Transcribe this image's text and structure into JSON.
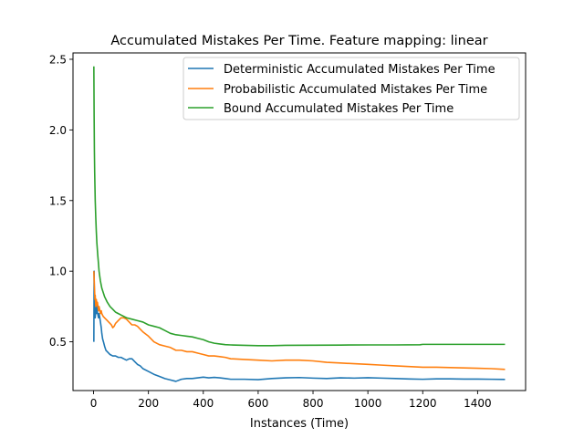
{
  "chart_data": {
    "type": "line",
    "title": "Accumulated Mistakes Per Time. Feature mapping: linear",
    "xlabel": "Instances (Time)",
    "ylabel": "",
    "xlim": [
      -75,
      1575
    ],
    "ylim": [
      0.155,
      2.545
    ],
    "xticks": [
      0,
      200,
      400,
      600,
      800,
      1000,
      1200,
      1400
    ],
    "xtick_labels": [
      "0",
      "200",
      "400",
      "600",
      "800",
      "1000",
      "1200",
      "1400"
    ],
    "yticks": [
      0.5,
      1.0,
      1.5,
      2.0,
      2.5
    ],
    "ytick_labels": [
      "0.5",
      "1.0",
      "1.5",
      "2.0",
      "2.5"
    ],
    "grid": false,
    "legend_position": "top-right",
    "series": [
      {
        "name": "Deterministic Accumulated Mistakes Per Time",
        "color": "#1f77b4",
        "points": [
          [
            1,
            0.5
          ],
          [
            2,
            1.0
          ],
          [
            3,
            0.67
          ],
          [
            4,
            0.75
          ],
          [
            5,
            0.8
          ],
          [
            6,
            0.67
          ],
          [
            8,
            0.75
          ],
          [
            10,
            0.7
          ],
          [
            12,
            0.75
          ],
          [
            14,
            0.71
          ],
          [
            16,
            0.69
          ],
          [
            18,
            0.67
          ],
          [
            20,
            0.7
          ],
          [
            22,
            0.68
          ],
          [
            25,
            0.64
          ],
          [
            28,
            0.6
          ],
          [
            30,
            0.56
          ],
          [
            33,
            0.52
          ],
          [
            36,
            0.5
          ],
          [
            40,
            0.47
          ],
          [
            45,
            0.44
          ],
          [
            50,
            0.43
          ],
          [
            60,
            0.41
          ],
          [
            70,
            0.4
          ],
          [
            80,
            0.4
          ],
          [
            90,
            0.39
          ],
          [
            100,
            0.39
          ],
          [
            110,
            0.38
          ],
          [
            120,
            0.37
          ],
          [
            130,
            0.38
          ],
          [
            140,
            0.38
          ],
          [
            150,
            0.36
          ],
          [
            160,
            0.34
          ],
          [
            170,
            0.33
          ],
          [
            180,
            0.31
          ],
          [
            200,
            0.29
          ],
          [
            220,
            0.27
          ],
          [
            240,
            0.255
          ],
          [
            260,
            0.24
          ],
          [
            280,
            0.23
          ],
          [
            300,
            0.22
          ],
          [
            320,
            0.235
          ],
          [
            340,
            0.24
          ],
          [
            360,
            0.24
          ],
          [
            380,
            0.245
          ],
          [
            400,
            0.25
          ],
          [
            420,
            0.245
          ],
          [
            440,
            0.248
          ],
          [
            460,
            0.245
          ],
          [
            480,
            0.24
          ],
          [
            500,
            0.235
          ],
          [
            550,
            0.235
          ],
          [
            600,
            0.232
          ],
          [
            650,
            0.24
          ],
          [
            700,
            0.245
          ],
          [
            750,
            0.247
          ],
          [
            800,
            0.243
          ],
          [
            850,
            0.24
          ],
          [
            900,
            0.245
          ],
          [
            950,
            0.243
          ],
          [
            1000,
            0.246
          ],
          [
            1050,
            0.243
          ],
          [
            1100,
            0.24
          ],
          [
            1150,
            0.237
          ],
          [
            1200,
            0.235
          ],
          [
            1250,
            0.238
          ],
          [
            1300,
            0.238
          ],
          [
            1350,
            0.236
          ],
          [
            1400,
            0.236
          ],
          [
            1450,
            0.235
          ],
          [
            1500,
            0.234
          ]
        ]
      },
      {
        "name": "Probabilistic Accumulated Mistakes Per Time",
        "color": "#ff7f0e",
        "points": [
          [
            1,
            1.0
          ],
          [
            2,
            0.95
          ],
          [
            3,
            0.9
          ],
          [
            4,
            0.85
          ],
          [
            5,
            0.8
          ],
          [
            6,
            0.83
          ],
          [
            8,
            0.75
          ],
          [
            10,
            0.8
          ],
          [
            12,
            0.76
          ],
          [
            14,
            0.78
          ],
          [
            16,
            0.75
          ],
          [
            18,
            0.72
          ],
          [
            20,
            0.75
          ],
          [
            22,
            0.73
          ],
          [
            25,
            0.7
          ],
          [
            28,
            0.72
          ],
          [
            30,
            0.7
          ],
          [
            35,
            0.68
          ],
          [
            40,
            0.67
          ],
          [
            45,
            0.66
          ],
          [
            50,
            0.65
          ],
          [
            55,
            0.64
          ],
          [
            60,
            0.63
          ],
          [
            65,
            0.62
          ],
          [
            70,
            0.6
          ],
          [
            75,
            0.61
          ],
          [
            80,
            0.63
          ],
          [
            90,
            0.65
          ],
          [
            100,
            0.67
          ],
          [
            110,
            0.67
          ],
          [
            120,
            0.66
          ],
          [
            130,
            0.64
          ],
          [
            140,
            0.62
          ],
          [
            150,
            0.62
          ],
          [
            160,
            0.61
          ],
          [
            170,
            0.59
          ],
          [
            180,
            0.57
          ],
          [
            200,
            0.54
          ],
          [
            220,
            0.5
          ],
          [
            240,
            0.48
          ],
          [
            260,
            0.47
          ],
          [
            280,
            0.46
          ],
          [
            300,
            0.44
          ],
          [
            320,
            0.44
          ],
          [
            340,
            0.43
          ],
          [
            360,
            0.43
          ],
          [
            380,
            0.42
          ],
          [
            400,
            0.41
          ],
          [
            420,
            0.4
          ],
          [
            440,
            0.4
          ],
          [
            460,
            0.395
          ],
          [
            480,
            0.39
          ],
          [
            500,
            0.38
          ],
          [
            550,
            0.375
          ],
          [
            600,
            0.37
          ],
          [
            650,
            0.365
          ],
          [
            700,
            0.37
          ],
          [
            750,
            0.37
          ],
          [
            800,
            0.365
          ],
          [
            850,
            0.355
          ],
          [
            900,
            0.35
          ],
          [
            950,
            0.345
          ],
          [
            1000,
            0.34
          ],
          [
            1050,
            0.335
          ],
          [
            1100,
            0.33
          ],
          [
            1150,
            0.325
          ],
          [
            1200,
            0.32
          ],
          [
            1250,
            0.32
          ],
          [
            1300,
            0.318
          ],
          [
            1350,
            0.315
          ],
          [
            1400,
            0.313
          ],
          [
            1450,
            0.31
          ],
          [
            1500,
            0.305
          ]
        ]
      },
      {
        "name": "Bound Accumulated Mistakes Per Time",
        "color": "#2ca02c",
        "points": [
          [
            1,
            2.45
          ],
          [
            2,
            2.1
          ],
          [
            3,
            1.85
          ],
          [
            4,
            1.7
          ],
          [
            5,
            1.6
          ],
          [
            6,
            1.5
          ],
          [
            8,
            1.38
          ],
          [
            10,
            1.28
          ],
          [
            12,
            1.2
          ],
          [
            15,
            1.12
          ],
          [
            18,
            1.05
          ],
          [
            20,
            1.0
          ],
          [
            25,
            0.93
          ],
          [
            30,
            0.88
          ],
          [
            35,
            0.85
          ],
          [
            40,
            0.82
          ],
          [
            45,
            0.8
          ],
          [
            50,
            0.78
          ],
          [
            60,
            0.75
          ],
          [
            70,
            0.73
          ],
          [
            80,
            0.71
          ],
          [
            90,
            0.7
          ],
          [
            100,
            0.69
          ],
          [
            120,
            0.67
          ],
          [
            140,
            0.66
          ],
          [
            160,
            0.65
          ],
          [
            180,
            0.64
          ],
          [
            200,
            0.62
          ],
          [
            220,
            0.61
          ],
          [
            240,
            0.6
          ],
          [
            260,
            0.58
          ],
          [
            280,
            0.56
          ],
          [
            300,
            0.55
          ],
          [
            320,
            0.545
          ],
          [
            340,
            0.54
          ],
          [
            360,
            0.535
          ],
          [
            380,
            0.525
          ],
          [
            400,
            0.515
          ],
          [
            420,
            0.5
          ],
          [
            440,
            0.49
          ],
          [
            460,
            0.485
          ],
          [
            480,
            0.48
          ],
          [
            500,
            0.478
          ],
          [
            550,
            0.475
          ],
          [
            600,
            0.473
          ],
          [
            650,
            0.473
          ],
          [
            700,
            0.475
          ],
          [
            800,
            0.476
          ],
          [
            900,
            0.477
          ],
          [
            1000,
            0.478
          ],
          [
            1100,
            0.478
          ],
          [
            1190,
            0.479
          ],
          [
            1200,
            0.482
          ],
          [
            1300,
            0.482
          ],
          [
            1400,
            0.482
          ],
          [
            1500,
            0.482
          ]
        ]
      }
    ]
  }
}
